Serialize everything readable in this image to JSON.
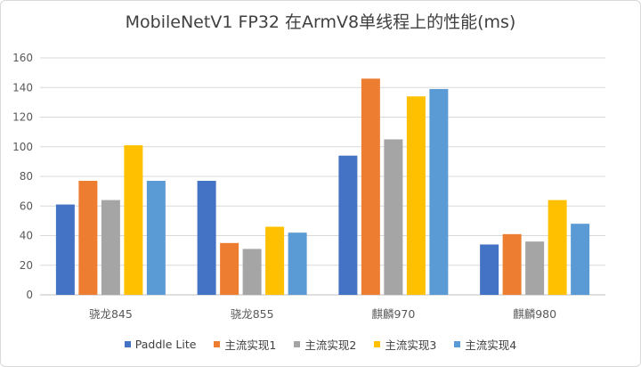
{
  "chart_data": {
    "type": "bar",
    "title": "MobileNetV1 FP32 在ArmV8单线程上的性能(ms)",
    "xlabel": "",
    "ylabel": "",
    "categories": [
      "骁龙845",
      "骁龙855",
      "麒麟970",
      "麒麟980"
    ],
    "ylim": [
      0,
      160
    ],
    "yticks": [
      0,
      20,
      40,
      60,
      80,
      100,
      120,
      140,
      160
    ],
    "grid": true,
    "legend_position": "bottom",
    "series": [
      {
        "name": "Paddle Lite",
        "color": "#4472c4",
        "values": [
          61,
          77,
          94,
          34
        ]
      },
      {
        "name": "主流实现1",
        "color": "#ed7d31",
        "values": [
          77,
          35,
          146,
          41
        ]
      },
      {
        "name": "主流实现2",
        "color": "#a5a5a5",
        "values": [
          64,
          31,
          105,
          36
        ]
      },
      {
        "name": "主流实现3",
        "color": "#ffc000",
        "values": [
          101,
          46,
          134,
          64
        ]
      },
      {
        "name": "主流实现4",
        "color": "#5b9bd5",
        "values": [
          77,
          42,
          139,
          48
        ]
      }
    ]
  }
}
